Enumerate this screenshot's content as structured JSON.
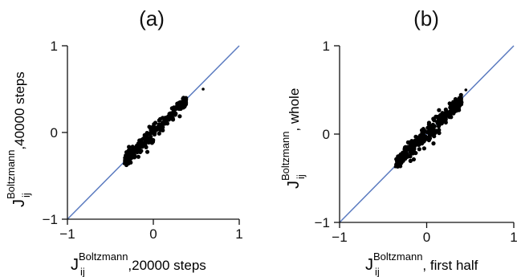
{
  "chart_data": [
    {
      "type": "scatter",
      "title": "(a)",
      "xlabel": {
        "base": "J",
        "sub": "ij",
        "sup": "Boltzmann",
        "tail": ",20000 steps"
      },
      "ylabel": {
        "base": "J",
        "sub": "ij",
        "sup": "Boltzmann",
        "tail": ",40000 steps"
      },
      "xlim": [
        -1,
        1
      ],
      "ylim": [
        -1,
        1
      ],
      "xticks": [
        "−1",
        "0",
        "1"
      ],
      "yticks": [
        "−1",
        "0",
        "1"
      ],
      "reference_line": "y = x",
      "grid": false,
      "cloud": {
        "x_from": -0.33,
        "x_to": 0.38,
        "slope": 0.98,
        "spread": 0.05,
        "n": 260
      },
      "outliers": [
        {
          "x": 0.58,
          "y": 0.5
        },
        {
          "x": -0.34,
          "y": -0.36
        }
      ]
    },
    {
      "type": "scatter",
      "title": "(b)",
      "xlabel": {
        "base": "J",
        "sub": "ij",
        "sup": "Boltzmann",
        "tail": ", first half"
      },
      "ylabel": {
        "base": "J",
        "sub": "ij",
        "sup": "Boltzmann",
        "tail": ", whole"
      },
      "xlim": [
        -1,
        1
      ],
      "ylim": [
        -1,
        1
      ],
      "xticks": [
        "−1",
        "0",
        "1"
      ],
      "yticks": [
        "−1",
        "0",
        "1"
      ],
      "reference_line": "y = x",
      "grid": false,
      "cloud": {
        "x_from": -0.35,
        "x_to": 0.4,
        "slope": 0.93,
        "spread": 0.065,
        "n": 300
      },
      "outliers": [
        {
          "x": 0.45,
          "y": 0.5
        },
        {
          "x": -0.36,
          "y": -0.37
        }
      ]
    }
  ],
  "colors": {
    "reference_line": "#5b7bc0",
    "points": "#000000",
    "axes": "#111111"
  }
}
